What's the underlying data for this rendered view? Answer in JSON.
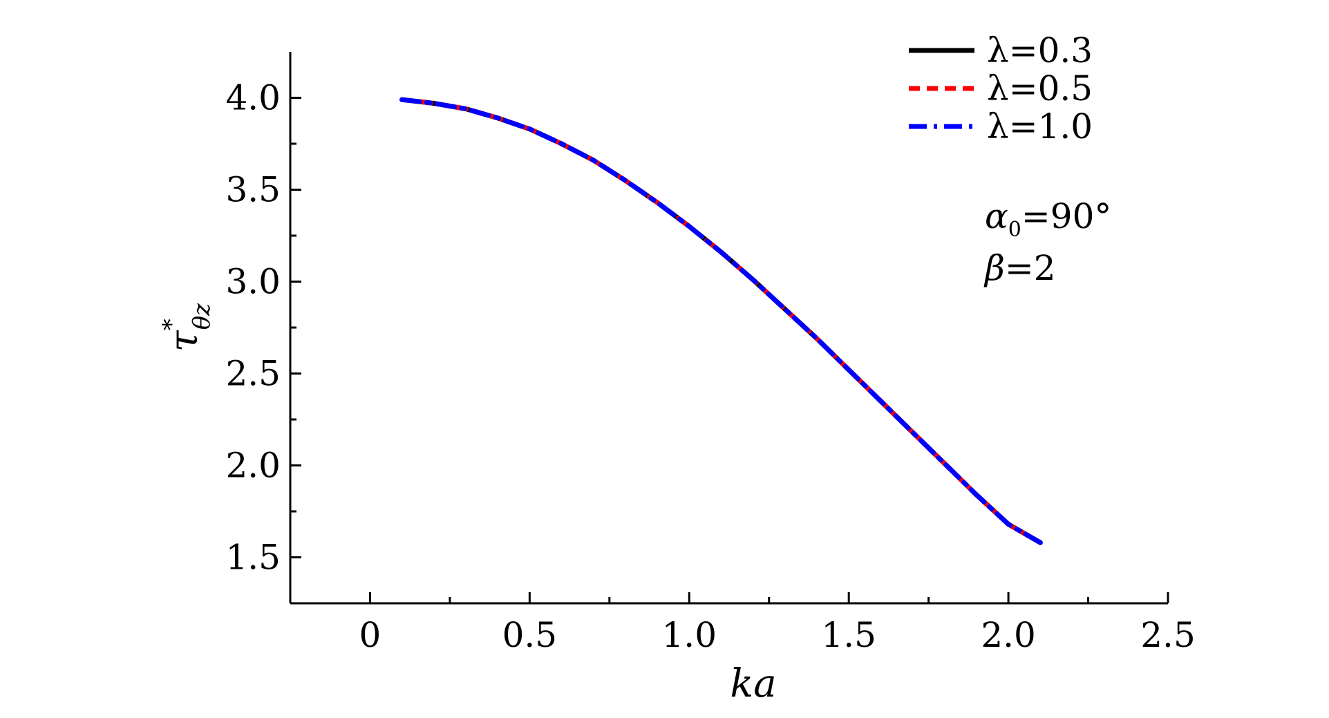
{
  "chart_data": {
    "type": "line",
    "xlabel": "ka",
    "ylabel": "τ*θz",
    "ylabel_parts": {
      "base": "τ",
      "sup": "*",
      "sub": "θz"
    },
    "xlim": [
      -0.25,
      2.5
    ],
    "ylim": [
      1.25,
      4.25
    ],
    "xticks": [
      0,
      0.5,
      1.0,
      1.5,
      2.0,
      2.5
    ],
    "xtick_labels": [
      "0",
      "0.5",
      "1.0",
      "1.5",
      "2.0",
      "2.5"
    ],
    "yticks": [
      1.5,
      2.0,
      2.5,
      3.0,
      3.5,
      4.0
    ],
    "ytick_labels": [
      "1.5",
      "2.0",
      "2.5",
      "3.0",
      "3.5",
      "4.0"
    ],
    "grid": false,
    "legend_position": "top-right",
    "annotations": [
      "α0=90°",
      "β=2"
    ],
    "annotation_parts": [
      {
        "base": "α",
        "sub": "0",
        "rest": "=90°"
      },
      {
        "base": "β",
        "sub": "",
        "rest": "=2"
      }
    ],
    "series": [
      {
        "name": "λ=0.3",
        "color": "#000000",
        "style": "solid",
        "x": [
          0.1,
          0.2,
          0.3,
          0.4,
          0.5,
          0.6,
          0.7,
          0.8,
          0.9,
          1.0,
          1.1,
          1.2,
          1.3,
          1.4,
          1.5,
          1.6,
          1.7,
          1.8,
          1.9,
          2.0,
          2.1
        ],
        "y": [
          3.99,
          3.97,
          3.94,
          3.89,
          3.83,
          3.75,
          3.66,
          3.55,
          3.43,
          3.3,
          3.16,
          3.01,
          2.85,
          2.69,
          2.52,
          2.35,
          2.18,
          2.01,
          1.84,
          1.68,
          1.58
        ]
      },
      {
        "name": "λ=0.5",
        "color": "#ff0000",
        "style": "dashed",
        "x": [
          0.1,
          0.2,
          0.3,
          0.4,
          0.5,
          0.6,
          0.7,
          0.8,
          0.9,
          1.0,
          1.1,
          1.2,
          1.3,
          1.4,
          1.5,
          1.6,
          1.7,
          1.8,
          1.9,
          2.0,
          2.1
        ],
        "y": [
          3.99,
          3.97,
          3.94,
          3.89,
          3.83,
          3.75,
          3.66,
          3.55,
          3.43,
          3.3,
          3.16,
          3.01,
          2.85,
          2.69,
          2.52,
          2.35,
          2.18,
          2.01,
          1.84,
          1.68,
          1.58
        ]
      },
      {
        "name": "λ=1.0",
        "color": "#0000ff",
        "style": "dashdot",
        "x": [
          0.1,
          0.2,
          0.3,
          0.4,
          0.5,
          0.6,
          0.7,
          0.8,
          0.9,
          1.0,
          1.1,
          1.2,
          1.3,
          1.4,
          1.5,
          1.6,
          1.7,
          1.8,
          1.9,
          2.0,
          2.1
        ],
        "y": [
          3.99,
          3.97,
          3.94,
          3.89,
          3.83,
          3.75,
          3.66,
          3.55,
          3.43,
          3.3,
          3.16,
          3.01,
          2.85,
          2.69,
          2.52,
          2.35,
          2.18,
          2.01,
          1.84,
          1.68,
          1.58
        ]
      }
    ]
  }
}
